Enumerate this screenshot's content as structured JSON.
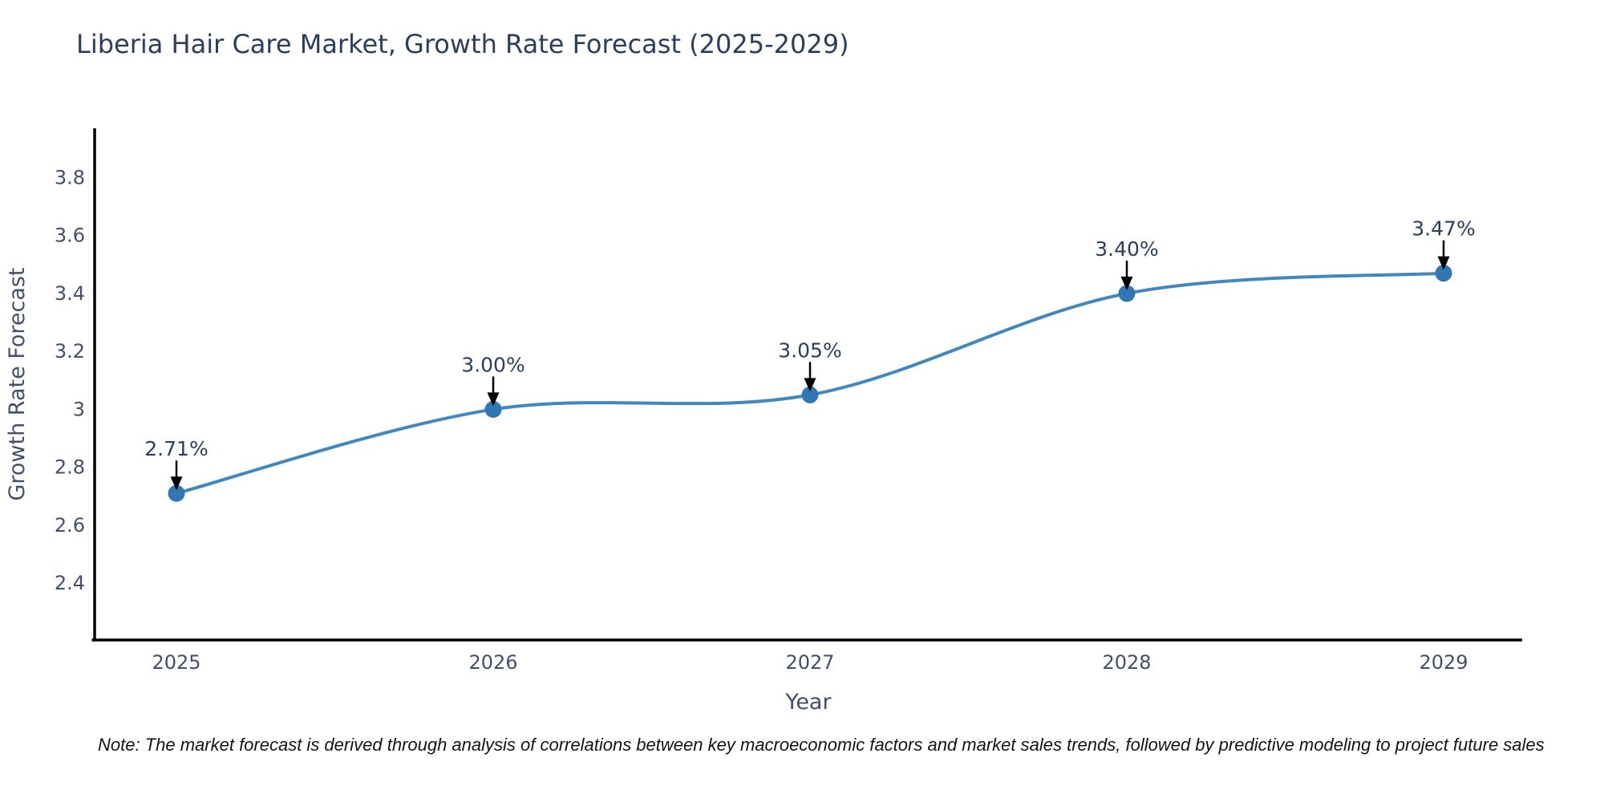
{
  "note": "Note: The market forecast is derived through analysis of correlations between key macroeconomic factors and market sales trends, followed by predictive modeling to project future sales",
  "chart_data": {
    "type": "line",
    "title": "Liberia Hair Care Market, Growth Rate Forecast (2025-2029)",
    "xlabel": "Year",
    "ylabel": "Growth Rate Forecast",
    "x": [
      2025,
      2026,
      2027,
      2028,
      2029
    ],
    "values": [
      2.71,
      3.0,
      3.05,
      3.4,
      3.47
    ],
    "point_labels": [
      "2.71%",
      "3.00%",
      "3.05%",
      "3.40%",
      "3.47%"
    ],
    "xtick_labels": [
      "2025",
      "2026",
      "2027",
      "2028",
      "2029"
    ],
    "ytick_values": [
      2.4,
      2.6,
      2.8,
      3,
      3.2,
      3.4,
      3.6,
      3.8
    ],
    "ytick_labels": [
      "2.4",
      "2.6",
      "2.8",
      "3",
      "3.2",
      "3.4",
      "3.6",
      "3.8"
    ],
    "ylim": [
      2.204,
      3.97
    ],
    "grid": false,
    "legend": "none",
    "line_shape": "spline",
    "line_color": "#4387bf",
    "marker_color": "#3277b3",
    "axis_color": "#000000",
    "title_color": "#2b3f5c",
    "tick_color": "#42506b",
    "annotation_text_color": "#2b3f5c",
    "annotation_arrow_color": "#000000"
  }
}
